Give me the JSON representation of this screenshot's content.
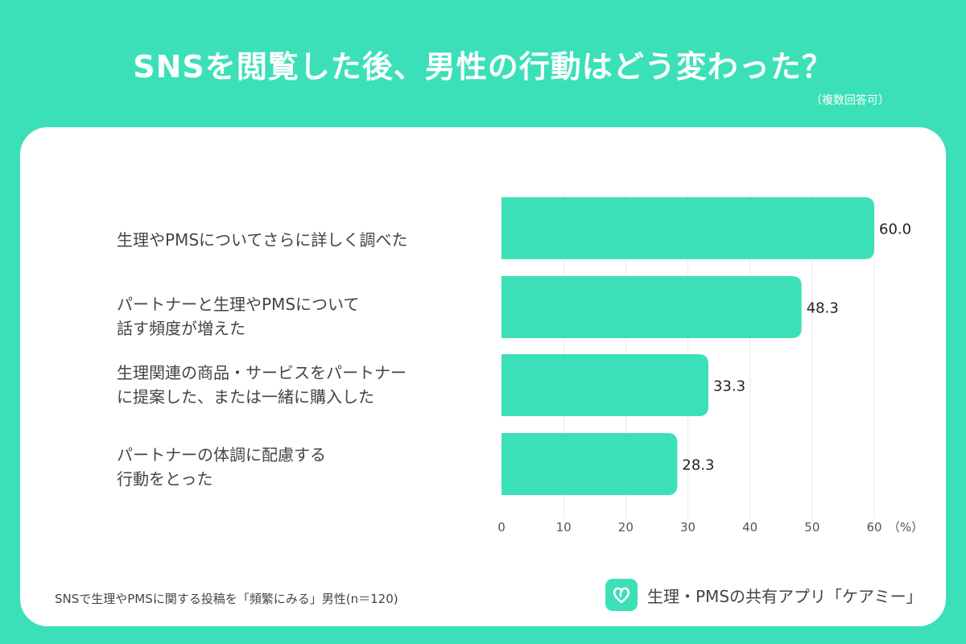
{
  "header": {
    "title": "SNSを閲覧した後、男性の行動はどう変わった？",
    "subtitle": "（複数回答可）"
  },
  "chart_data": {
    "type": "bar",
    "orientation": "horizontal",
    "categories": [
      "生理やPMSについてさらに詳しく調べた",
      "パートナーと生理やPMSについて\n話す頻度が増えた",
      "生理関連の商品・サービスをパートナー\nに提案した、または一緒に購入した",
      "パートナーの体調に配慮する\n行動をとった"
    ],
    "values": [
      60.0,
      48.3,
      33.3,
      28.3
    ],
    "value_labels": [
      "60.0",
      "48.3",
      "33.3",
      "28.3"
    ],
    "xlim": [
      0,
      60
    ],
    "xticks": [
      "0",
      "10",
      "20",
      "30",
      "40",
      "50",
      "60"
    ],
    "xunit": "（%）",
    "grid": true,
    "bar_color": "#3ce0b8"
  },
  "footer": {
    "note": "SNSで生理やPMSに関する投稿を「頻繁にみる」男性(n＝120)",
    "brand": "生理・PMSの共有アプリ「ケアミー」",
    "logo_icon": "heart-icon"
  }
}
